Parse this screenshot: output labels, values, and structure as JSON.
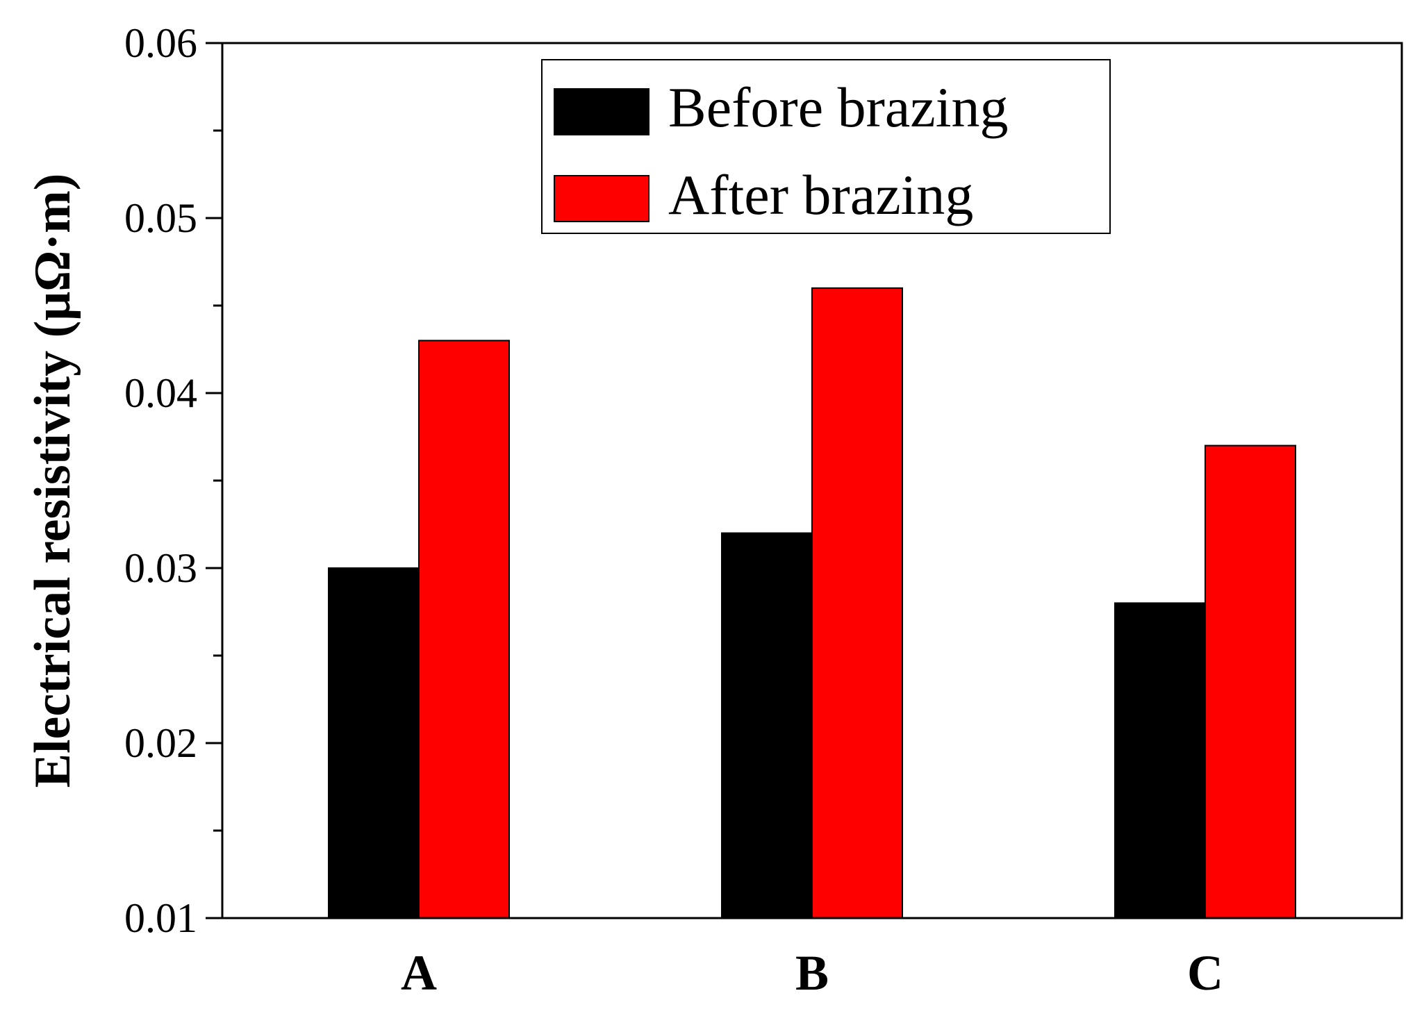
{
  "chart_data": {
    "type": "bar",
    "categories": [
      "A",
      "B",
      "C"
    ],
    "series": [
      {
        "name": "Before brazing",
        "color": "#000000",
        "values": [
          0.03,
          0.032,
          0.028
        ]
      },
      {
        "name": "After brazing",
        "color": "#ff0000",
        "values": [
          0.043,
          0.046,
          0.037
        ]
      }
    ],
    "xlabel": "",
    "ylabel": "Electrical resistivity (μΩ·m)",
    "ylim": [
      0.01,
      0.06
    ],
    "yticks": [
      "0.01",
      "0.02",
      "0.03",
      "0.04",
      "0.05",
      "0.06"
    ],
    "legend_position": "top-center",
    "grid": false
  }
}
